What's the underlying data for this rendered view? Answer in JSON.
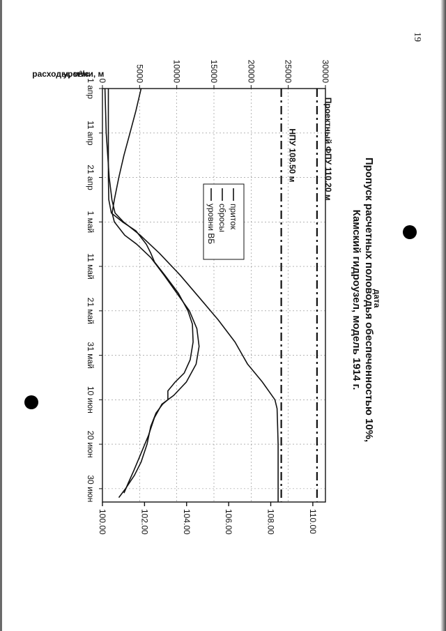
{
  "page": {
    "number": "19"
  },
  "chart_data": {
    "type": "line",
    "title": "Пропуск расчетных половодья обеспеченностью 10%,",
    "subtitle": "Камский гидроузел, модель 1914 г.",
    "xlabel": "дата",
    "ylabel": "расходы, м³/с",
    "y2label": "уровни, м",
    "x_ticks": [
      {
        "day": 0,
        "label": "1 апр"
      },
      {
        "day": 10,
        "label": "11 апр"
      },
      {
        "day": 20,
        "label": "21 апр"
      },
      {
        "day": 30,
        "label": "1 май"
      },
      {
        "day": 40,
        "label": "11 май"
      },
      {
        "day": 50,
        "label": "21 май"
      },
      {
        "day": 60,
        "label": "31 май"
      },
      {
        "day": 70,
        "label": "10 июн"
      },
      {
        "day": 80,
        "label": "20 июн"
      },
      {
        "day": 90,
        "label": "30 июн"
      }
    ],
    "xlim": [
      0,
      93
    ],
    "ylim": [
      0,
      30000
    ],
    "y_ticks": [
      0,
      5000,
      10000,
      15000,
      20000,
      25000,
      30000
    ],
    "y2lim": [
      100.0,
      110.6
    ],
    "y2_ticks": [
      "100.00",
      "102.00",
      "104.00",
      "106.00",
      "108.00",
      "110.00"
    ],
    "grid": true,
    "legend_position": "inside-left",
    "series": [
      {
        "name": "приток",
        "axis": "left",
        "style": "solid",
        "points": [
          [
            0,
            5200
          ],
          [
            5,
            4500
          ],
          [
            10,
            3700
          ],
          [
            15,
            2900
          ],
          [
            20,
            2200
          ],
          [
            25,
            1600
          ],
          [
            28,
            1300
          ],
          [
            30,
            1600
          ],
          [
            33,
            3000
          ],
          [
            35,
            4600
          ],
          [
            38,
            6500
          ],
          [
            42,
            8300
          ],
          [
            46,
            10000
          ],
          [
            50,
            11700
          ],
          [
            54,
            12700
          ],
          [
            58,
            13000
          ],
          [
            62,
            12600
          ],
          [
            66,
            11300
          ],
          [
            69,
            9600
          ],
          [
            71,
            8000
          ],
          [
            74,
            7000
          ],
          [
            78,
            6200
          ],
          [
            82,
            5200
          ],
          [
            86,
            4200
          ],
          [
            89,
            3400
          ],
          [
            91,
            2900
          ]
        ]
      },
      {
        "name": "сбросы",
        "axis": "left",
        "style": "solid",
        "points": [
          [
            0,
            800
          ],
          [
            10,
            800
          ],
          [
            20,
            800
          ],
          [
            25,
            850
          ],
          [
            28,
            1200
          ],
          [
            30,
            2700
          ],
          [
            32,
            4500
          ],
          [
            35,
            5900
          ],
          [
            37,
            6500
          ],
          [
            39,
            7000
          ],
          [
            42,
            8400
          ],
          [
            46,
            10200
          ],
          [
            50,
            11500
          ],
          [
            53,
            12100
          ],
          [
            57,
            12200
          ],
          [
            61,
            11800
          ],
          [
            64,
            11000
          ],
          [
            66,
            9800
          ],
          [
            68,
            8800
          ],
          [
            70,
            8800
          ],
          [
            71,
            8100
          ],
          [
            73,
            7200
          ],
          [
            76,
            6500
          ],
          [
            80,
            6000
          ],
          [
            84,
            5200
          ],
          [
            87,
            4300
          ],
          [
            90,
            3100
          ],
          [
            92,
            2200
          ]
        ]
      },
      {
        "name": "уровни ВБ",
        "axis": "right",
        "style": "solid",
        "points": [
          [
            0,
            100.12
          ],
          [
            10,
            100.18
          ],
          [
            20,
            100.32
          ],
          [
            25,
            100.45
          ],
          [
            28,
            100.6
          ],
          [
            30,
            101.0
          ],
          [
            33,
            101.8
          ],
          [
            37,
            102.7
          ],
          [
            42,
            103.7
          ],
          [
            47,
            104.6
          ],
          [
            52,
            105.5
          ],
          [
            57,
            106.3
          ],
          [
            62,
            106.9
          ],
          [
            66,
            107.6
          ],
          [
            70,
            108.2
          ],
          [
            72,
            108.3
          ],
          [
            75,
            108.32
          ],
          [
            80,
            108.35
          ],
          [
            85,
            108.35
          ],
          [
            90,
            108.35
          ],
          [
            93,
            108.35
          ]
        ]
      },
      {
        "name": "Проектный ФПУ 110.20 м",
        "axis": "right",
        "style": "dash-dot",
        "points": [
          [
            0,
            110.2
          ],
          [
            93,
            110.2
          ]
        ]
      },
      {
        "name": "НПУ 108.50 м",
        "axis": "right",
        "style": "dash-dot",
        "points": [
          [
            0,
            108.5
          ],
          [
            93,
            108.5
          ]
        ]
      }
    ],
    "annotations": [
      {
        "text": "Проектный ФПУ 110.20 м",
        "day": 2
      },
      {
        "text": "НПУ 108.50 м",
        "day": 9
      }
    ]
  }
}
